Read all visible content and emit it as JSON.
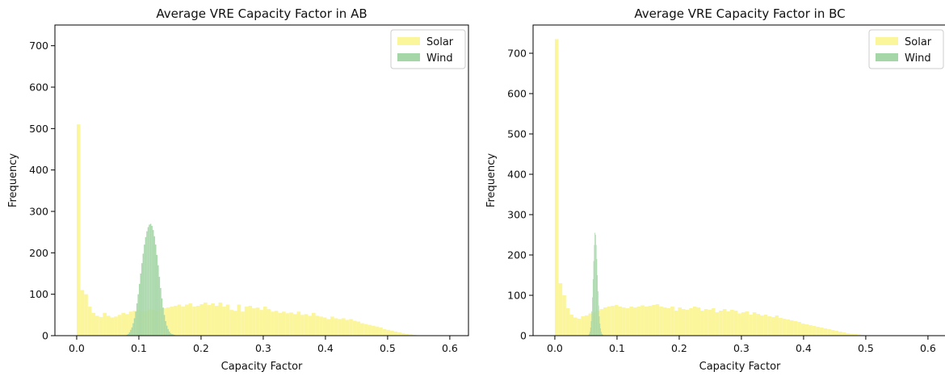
{
  "chart_data": [
    {
      "type": "histogram",
      "title": "Average VRE Capacity Factor in AB",
      "xlabel": "Capacity Factor",
      "ylabel": "Frequency",
      "xlim": [
        -0.035,
        0.63
      ],
      "ylim": [
        0,
        750
      ],
      "xticks": [
        0.0,
        0.1,
        0.2,
        0.3,
        0.4,
        0.5,
        0.6
      ],
      "xtick_labels": [
        "0.0",
        "0.1",
        "0.2",
        "0.3",
        "0.4",
        "0.5",
        "0.6"
      ],
      "yticks": [
        0,
        100,
        200,
        300,
        400,
        500,
        600,
        700
      ],
      "ytick_labels": [
        "0",
        "100",
        "200",
        "300",
        "400",
        "500",
        "600",
        "700"
      ],
      "legend_position": "top-right",
      "series": [
        {
          "name": "Solar",
          "color": "#fbf59b",
          "bin_start": 0.0,
          "bin_width": 0.006,
          "counts": [
            510,
            110,
            100,
            70,
            55,
            48,
            45,
            55,
            48,
            44,
            46,
            50,
            55,
            52,
            58,
            60,
            62,
            58,
            60,
            63,
            62,
            60,
            65,
            66,
            68,
            70,
            72,
            75,
            70,
            75,
            78,
            70,
            72,
            76,
            80,
            74,
            78,
            72,
            80,
            70,
            75,
            62,
            60,
            75,
            58,
            70,
            72,
            66,
            68,
            62,
            70,
            64,
            58,
            60,
            55,
            58,
            54,
            56,
            52,
            58,
            50,
            52,
            48,
            55,
            48,
            46,
            44,
            40,
            46,
            42,
            40,
            42,
            38,
            40,
            36,
            34,
            30,
            28,
            26,
            24,
            22,
            20,
            16,
            14,
            12,
            10,
            8,
            6,
            4,
            3,
            2,
            1
          ]
        },
        {
          "name": "Wind",
          "color": "#a5d6a7",
          "bin_start": 0.08,
          "bin_width": 0.002,
          "counts": [
            2,
            4,
            8,
            14,
            20,
            30,
            42,
            58,
            78,
            100,
            125,
            150,
            175,
            198,
            220,
            238,
            252,
            262,
            268,
            270,
            265,
            255,
            240,
            220,
            195,
            170,
            142,
            115,
            90,
            68,
            50,
            35,
            24,
            16,
            10,
            6,
            4,
            3,
            2,
            1
          ]
        }
      ]
    },
    {
      "type": "histogram",
      "title": "Average VRE Capacity Factor in BC",
      "xlabel": "Capacity Factor",
      "ylabel": "Frequency",
      "xlim": [
        -0.035,
        0.63
      ],
      "ylim": [
        0,
        770
      ],
      "xticks": [
        0.0,
        0.1,
        0.2,
        0.3,
        0.4,
        0.5,
        0.6
      ],
      "xtick_labels": [
        "0.0",
        "0.1",
        "0.2",
        "0.3",
        "0.4",
        "0.5",
        "0.6"
      ],
      "yticks": [
        0,
        100,
        200,
        300,
        400,
        500,
        600,
        700
      ],
      "ytick_labels": [
        "0",
        "100",
        "200",
        "300",
        "400",
        "500",
        "600",
        "700"
      ],
      "legend_position": "top-right",
      "series": [
        {
          "name": "Solar",
          "color": "#fbf59b",
          "bin_start": 0.0,
          "bin_width": 0.006,
          "counts": [
            735,
            130,
            100,
            68,
            52,
            45,
            42,
            48,
            50,
            55,
            58,
            62,
            66,
            70,
            72,
            74,
            76,
            72,
            70,
            68,
            72,
            70,
            72,
            75,
            72,
            74,
            76,
            78,
            72,
            70,
            68,
            72,
            62,
            70,
            66,
            64,
            68,
            72,
            70,
            62,
            66,
            64,
            68,
            58,
            62,
            66,
            60,
            64,
            62,
            55,
            58,
            60,
            52,
            58,
            54,
            50,
            52,
            48,
            46,
            50,
            44,
            42,
            40,
            38,
            36,
            34,
            30,
            28,
            26,
            24,
            22,
            20,
            18,
            16,
            14,
            12,
            10,
            8,
            6,
            5,
            4,
            3,
            2,
            1
          ]
        },
        {
          "name": "Wind",
          "color": "#a5d6a7",
          "bin_start": 0.054,
          "bin_width": 0.001,
          "counts": [
            2,
            5,
            10,
            20,
            36,
            60,
            95,
            140,
            185,
            225,
            255,
            250,
            225,
            190,
            150,
            110,
            75,
            48,
            30,
            18,
            10,
            5,
            3,
            2
          ]
        }
      ]
    }
  ]
}
